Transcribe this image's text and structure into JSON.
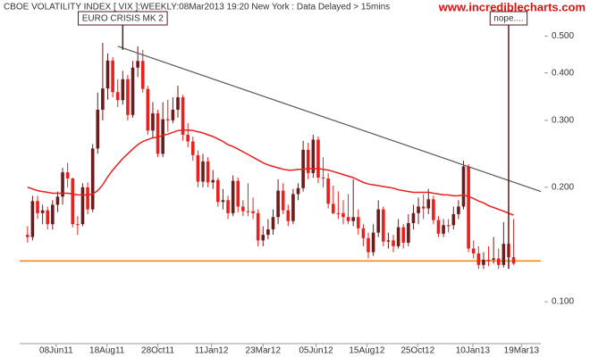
{
  "chart_data": {
    "type": "candlestick",
    "title": "CBOE VOLATILITY INDEX [ VIX ]:WEEKLY:08Mar2013 19:20 New York : Data Delayed > 15mins",
    "watermark": "www.incrediblecharts.com",
    "log_scale": true,
    "up_color": "#6b1c1c",
    "down_color": "#e8201e",
    "xlim": [
      "2011-04-18",
      "2013-04-15"
    ],
    "xticks": [
      {
        "value": "2011-06-08",
        "label": "08Jun11"
      },
      {
        "value": "2011-08-18",
        "label": "18Aug11"
      },
      {
        "value": "2011-10-28",
        "label": "28Oct11"
      },
      {
        "value": "2012-01-11",
        "label": "11Jan12"
      },
      {
        "value": "2012-03-23",
        "label": "23Mar12"
      },
      {
        "value": "2012-06-05",
        "label": "05Jun12"
      },
      {
        "value": "2012-08-15",
        "label": "15Aug12"
      },
      {
        "value": "2012-10-25",
        "label": "25Oct12"
      },
      {
        "value": "2013-01-10",
        "label": "10Jan13"
      },
      {
        "value": "2013-03-19",
        "label": "19Mar13"
      }
    ],
    "ylim": [
      0.0776,
      0.622
    ],
    "yticks": [
      {
        "value": 0.1,
        "label": "0.100"
      },
      {
        "value": 0.2,
        "label": "0.200"
      },
      {
        "value": 0.3,
        "label": "0.300"
      },
      {
        "value": 0.4,
        "label": "0.400"
      },
      {
        "value": 0.5,
        "label": "0.500"
      }
    ],
    "x": [
      "2011-04-29",
      "2011-05-06",
      "2011-05-13",
      "2011-05-20",
      "2011-05-27",
      "2011-06-03",
      "2011-06-10",
      "2011-06-17",
      "2011-06-24",
      "2011-07-01",
      "2011-07-08",
      "2011-07-15",
      "2011-07-22",
      "2011-07-29",
      "2011-08-05",
      "2011-08-12",
      "2011-08-19",
      "2011-08-26",
      "2011-09-02",
      "2011-09-09",
      "2011-09-16",
      "2011-09-23",
      "2011-09-30",
      "2011-10-07",
      "2011-10-14",
      "2011-10-21",
      "2011-10-28",
      "2011-11-04",
      "2011-11-11",
      "2011-11-18",
      "2011-11-25",
      "2011-12-02",
      "2011-12-09",
      "2011-12-16",
      "2011-12-23",
      "2011-12-30",
      "2012-01-06",
      "2012-01-13",
      "2012-01-20",
      "2012-01-27",
      "2012-02-03",
      "2012-02-10",
      "2012-02-17",
      "2012-02-24",
      "2012-03-02",
      "2012-03-09",
      "2012-03-16",
      "2012-03-23",
      "2012-03-30",
      "2012-04-06",
      "2012-04-13",
      "2012-04-20",
      "2012-04-27",
      "2012-05-04",
      "2012-05-11",
      "2012-05-18",
      "2012-05-25",
      "2012-06-01",
      "2012-06-08",
      "2012-06-15",
      "2012-06-22",
      "2012-06-29",
      "2012-07-06",
      "2012-07-13",
      "2012-07-20",
      "2012-07-27",
      "2012-08-03",
      "2012-08-10",
      "2012-08-17",
      "2012-08-24",
      "2012-08-31",
      "2012-09-07",
      "2012-09-14",
      "2012-09-21",
      "2012-09-28",
      "2012-10-05",
      "2012-10-12",
      "2012-10-19",
      "2012-10-26",
      "2012-11-02",
      "2012-11-09",
      "2012-11-16",
      "2012-11-23",
      "2012-11-30",
      "2012-12-07",
      "2012-12-14",
      "2012-12-21",
      "2012-12-28",
      "2013-01-04",
      "2013-01-11",
      "2013-01-18",
      "2013-01-25",
      "2013-02-01",
      "2013-02-08",
      "2013-02-15",
      "2013-02-22",
      "2013-03-01",
      "2013-03-08"
    ],
    "ohlc": [
      [
        0.15,
        0.158,
        0.143,
        0.148
      ],
      [
        0.148,
        0.19,
        0.145,
        0.184
      ],
      [
        0.184,
        0.19,
        0.165,
        0.171
      ],
      [
        0.171,
        0.18,
        0.16,
        0.174
      ],
      [
        0.174,
        0.178,
        0.155,
        0.16
      ],
      [
        0.16,
        0.185,
        0.155,
        0.18
      ],
      [
        0.18,
        0.195,
        0.172,
        0.189
      ],
      [
        0.189,
        0.225,
        0.18,
        0.219
      ],
      [
        0.219,
        0.232,
        0.2,
        0.211
      ],
      [
        0.211,
        0.212,
        0.157,
        0.16
      ],
      [
        0.16,
        0.168,
        0.15,
        0.16
      ],
      [
        0.16,
        0.205,
        0.158,
        0.2
      ],
      [
        0.2,
        0.206,
        0.17,
        0.175
      ],
      [
        0.175,
        0.26,
        0.172,
        0.253
      ],
      [
        0.253,
        0.355,
        0.245,
        0.32
      ],
      [
        0.32,
        0.48,
        0.3,
        0.364
      ],
      [
        0.364,
        0.45,
        0.34,
        0.431
      ],
      [
        0.431,
        0.44,
        0.345,
        0.356
      ],
      [
        0.356,
        0.385,
        0.325,
        0.339
      ],
      [
        0.339,
        0.405,
        0.33,
        0.385
      ],
      [
        0.385,
        0.395,
        0.3,
        0.31
      ],
      [
        0.31,
        0.43,
        0.305,
        0.413
      ],
      [
        0.413,
        0.47,
        0.39,
        0.43
      ],
      [
        0.43,
        0.46,
        0.355,
        0.363
      ],
      [
        0.363,
        0.37,
        0.275,
        0.282
      ],
      [
        0.282,
        0.335,
        0.27,
        0.313
      ],
      [
        0.313,
        0.32,
        0.24,
        0.245
      ],
      [
        0.245,
        0.335,
        0.24,
        0.302
      ],
      [
        0.302,
        0.34,
        0.28,
        0.3
      ],
      [
        0.3,
        0.345,
        0.295,
        0.32
      ],
      [
        0.32,
        0.37,
        0.305,
        0.345
      ],
      [
        0.345,
        0.35,
        0.265,
        0.275
      ],
      [
        0.275,
        0.295,
        0.255,
        0.264
      ],
      [
        0.264,
        0.272,
        0.235,
        0.243
      ],
      [
        0.243,
        0.25,
        0.2,
        0.207
      ],
      [
        0.207,
        0.245,
        0.2,
        0.234
      ],
      [
        0.234,
        0.24,
        0.2,
        0.206
      ],
      [
        0.206,
        0.222,
        0.198,
        0.209
      ],
      [
        0.209,
        0.212,
        0.178,
        0.183
      ],
      [
        0.183,
        0.198,
        0.175,
        0.185
      ],
      [
        0.185,
        0.19,
        0.165,
        0.171
      ],
      [
        0.171,
        0.215,
        0.168,
        0.208
      ],
      [
        0.208,
        0.212,
        0.172,
        0.178
      ],
      [
        0.178,
        0.185,
        0.168,
        0.173
      ],
      [
        0.173,
        0.205,
        0.168,
        0.173
      ],
      [
        0.173,
        0.188,
        0.165,
        0.171
      ],
      [
        0.171,
        0.175,
        0.14,
        0.145
      ],
      [
        0.145,
        0.158,
        0.14,
        0.15
      ],
      [
        0.15,
        0.165,
        0.146,
        0.155
      ],
      [
        0.155,
        0.175,
        0.15,
        0.167
      ],
      [
        0.167,
        0.21,
        0.16,
        0.196
      ],
      [
        0.196,
        0.205,
        0.17,
        0.174
      ],
      [
        0.174,
        0.18,
        0.158,
        0.163
      ],
      [
        0.163,
        0.198,
        0.16,
        0.192
      ],
      [
        0.192,
        0.205,
        0.185,
        0.199
      ],
      [
        0.199,
        0.265,
        0.195,
        0.251
      ],
      [
        0.251,
        0.262,
        0.21,
        0.218
      ],
      [
        0.218,
        0.275,
        0.212,
        0.267
      ],
      [
        0.267,
        0.272,
        0.205,
        0.212
      ],
      [
        0.212,
        0.24,
        0.2,
        0.211
      ],
      [
        0.211,
        0.218,
        0.176,
        0.181
      ],
      [
        0.181,
        0.202,
        0.17,
        0.171
      ],
      [
        0.171,
        0.195,
        0.165,
        0.171
      ],
      [
        0.171,
        0.185,
        0.16,
        0.167
      ],
      [
        0.167,
        0.192,
        0.16,
        0.163
      ],
      [
        0.163,
        0.21,
        0.158,
        0.167
      ],
      [
        0.167,
        0.175,
        0.15,
        0.156
      ],
      [
        0.156,
        0.16,
        0.14,
        0.147
      ],
      [
        0.147,
        0.152,
        0.13,
        0.135
      ],
      [
        0.135,
        0.16,
        0.132,
        0.152
      ],
      [
        0.152,
        0.185,
        0.148,
        0.175
      ],
      [
        0.175,
        0.178,
        0.14,
        0.144
      ],
      [
        0.144,
        0.152,
        0.138,
        0.145
      ],
      [
        0.145,
        0.15,
        0.135,
        0.14
      ],
      [
        0.14,
        0.165,
        0.138,
        0.157
      ],
      [
        0.157,
        0.16,
        0.138,
        0.143
      ],
      [
        0.143,
        0.17,
        0.14,
        0.161
      ],
      [
        0.161,
        0.18,
        0.155,
        0.171
      ],
      [
        0.171,
        0.188,
        0.16,
        0.178
      ],
      [
        0.178,
        0.192,
        0.165,
        0.176
      ],
      [
        0.176,
        0.198,
        0.17,
        0.186
      ],
      [
        0.186,
        0.19,
        0.16,
        0.164
      ],
      [
        0.164,
        0.168,
        0.148,
        0.151
      ],
      [
        0.151,
        0.165,
        0.148,
        0.159
      ],
      [
        0.159,
        0.165,
        0.152,
        0.159
      ],
      [
        0.159,
        0.178,
        0.155,
        0.17
      ],
      [
        0.17,
        0.185,
        0.165,
        0.178
      ],
      [
        0.178,
        0.235,
        0.175,
        0.227
      ],
      [
        0.227,
        0.23,
        0.135,
        0.138
      ],
      [
        0.138,
        0.145,
        0.13,
        0.134
      ],
      [
        0.134,
        0.14,
        0.122,
        0.125
      ],
      [
        0.125,
        0.135,
        0.122,
        0.129
      ],
      [
        0.129,
        0.14,
        0.124,
        0.129
      ],
      [
        0.129,
        0.148,
        0.126,
        0.13
      ],
      [
        0.13,
        0.138,
        0.122,
        0.125
      ],
      [
        0.125,
        0.162,
        0.123,
        0.142
      ],
      [
        0.142,
        0.168,
        0.13,
        0.131
      ],
      [
        0.131,
        0.165,
        0.125,
        0.126
      ]
    ],
    "moving_average": {
      "color": "#e8201e",
      "values": [
        0.2,
        0.198,
        0.196,
        0.195,
        0.194,
        0.193,
        0.193,
        0.193,
        0.193,
        0.192,
        0.191,
        0.191,
        0.191,
        0.192,
        0.196,
        0.203,
        0.213,
        0.222,
        0.23,
        0.238,
        0.245,
        0.252,
        0.259,
        0.264,
        0.267,
        0.27,
        0.271,
        0.274,
        0.276,
        0.279,
        0.282,
        0.283,
        0.283,
        0.282,
        0.28,
        0.278,
        0.275,
        0.272,
        0.268,
        0.264,
        0.259,
        0.256,
        0.252,
        0.248,
        0.244,
        0.24,
        0.236,
        0.232,
        0.229,
        0.227,
        0.225,
        0.223,
        0.222,
        0.222,
        0.223,
        0.223,
        0.224,
        0.224,
        0.224,
        0.223,
        0.222,
        0.22,
        0.218,
        0.216,
        0.214,
        0.212,
        0.209,
        0.206,
        0.204,
        0.203,
        0.202,
        0.201,
        0.2,
        0.199,
        0.197,
        0.196,
        0.195,
        0.194,
        0.194,
        0.194,
        0.194,
        0.193,
        0.192,
        0.191,
        0.191,
        0.19,
        0.19,
        0.191,
        0.189,
        0.187,
        0.184,
        0.182,
        0.179,
        0.177,
        0.175,
        0.173,
        0.171,
        0.169
      ]
    },
    "trend_line": {
      "color": "#555555",
      "points": [
        [
          "2011-09-02",
          0.47
        ],
        [
          "2013-04-15",
          0.195
        ]
      ]
    },
    "horizontal_line": {
      "color": "#f08000",
      "value": 0.128
    },
    "annotations": [
      {
        "text": "EURO CRISIS MK 2",
        "x": "2011-09-09",
        "y": 0.46
      },
      {
        "text": "nope....",
        "x": "2013-03-01",
        "y": 0.122
      }
    ]
  }
}
